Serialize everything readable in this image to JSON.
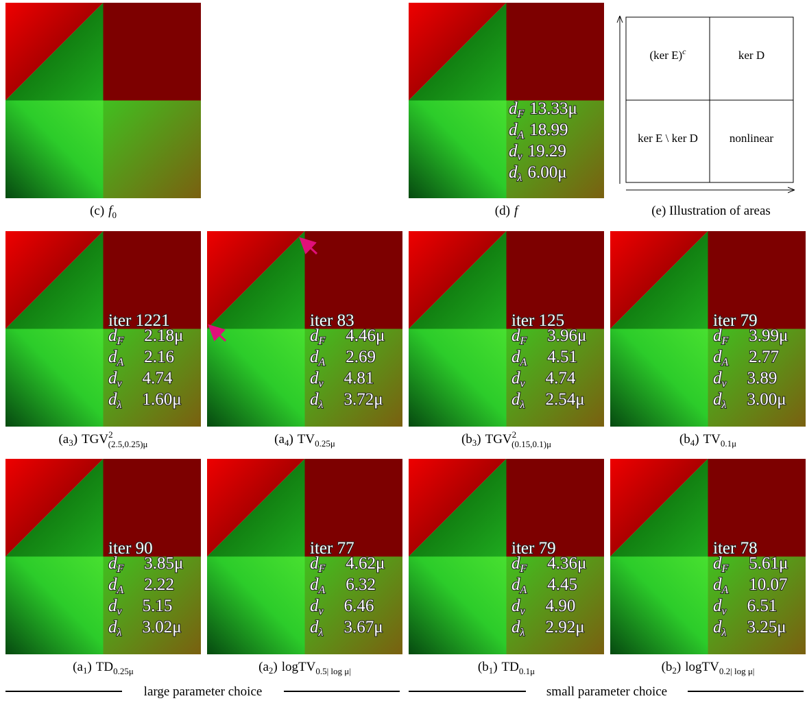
{
  "panels": [
    {
      "caption": {
        "tag": "(c)",
        "name": "f",
        "sub": "0"
      }
    },
    {
      "caption": {
        "tag": "(d)",
        "name": "f"
      },
      "metrics": [
        {
          "sym": "d",
          "sub": "F",
          "value": "13.33μ"
        },
        {
          "sym": "d",
          "sub": "A",
          "value": "18.99"
        },
        {
          "sym": "d",
          "sub": "v",
          "value": "19.29"
        },
        {
          "sym": "d",
          "sub": "λ",
          "value": "6.00μ"
        }
      ]
    },
    {
      "caption": {
        "tag": "(a",
        "tag_sub": "3",
        "tag_end": ")",
        "name": "TGV",
        "sup": "2",
        "sub": "(2.5,0.25)μ"
      },
      "iter": "iter 1221",
      "metrics": [
        {
          "sym": "d",
          "sub": "F",
          "value": "2.18μ"
        },
        {
          "sym": "d",
          "sub": "A",
          "value": "2.16"
        },
        {
          "sym": "d",
          "sub": "v",
          "value": "4.74"
        },
        {
          "sym": "d",
          "sub": "λ",
          "value": "1.60μ"
        }
      ]
    },
    {
      "caption": {
        "tag": "(a",
        "tag_sub": "4",
        "tag_end": ")",
        "name": "TV",
        "sub": "0.25μ"
      },
      "iter": "iter 83",
      "metrics": [
        {
          "sym": "d",
          "sub": "F",
          "value": "4.46μ"
        },
        {
          "sym": "d",
          "sub": "A",
          "value": "2.69"
        },
        {
          "sym": "d",
          "sub": "v",
          "value": "4.81"
        },
        {
          "sym": "d",
          "sub": "λ",
          "value": "3.72μ"
        }
      ]
    },
    {
      "caption": {
        "tag": "(b",
        "tag_sub": "3",
        "tag_end": ")",
        "name": "TGV",
        "sup": "2",
        "sub": "(0.15,0.1)μ"
      },
      "iter": "iter 125",
      "metrics": [
        {
          "sym": "d",
          "sub": "F",
          "value": "3.96μ"
        },
        {
          "sym": "d",
          "sub": "A",
          "value": "4.51"
        },
        {
          "sym": "d",
          "sub": "v",
          "value": "4.74"
        },
        {
          "sym": "d",
          "sub": "λ",
          "value": "2.54μ"
        }
      ]
    },
    {
      "caption": {
        "tag": "(b",
        "tag_sub": "4",
        "tag_end": ")",
        "name": "TV",
        "sub": "0.1μ"
      },
      "iter": "iter 79",
      "metrics": [
        {
          "sym": "d",
          "sub": "F",
          "value": "3.99μ"
        },
        {
          "sym": "d",
          "sub": "A",
          "value": "2.77"
        },
        {
          "sym": "d",
          "sub": "v",
          "value": "3.89"
        },
        {
          "sym": "d",
          "sub": "λ",
          "value": "3.00μ"
        }
      ]
    },
    {
      "caption": {
        "tag": "(a",
        "tag_sub": "1",
        "tag_end": ")",
        "name": "TD",
        "sub": "0.25μ"
      },
      "iter": "iter 90",
      "metrics": [
        {
          "sym": "d",
          "sub": "F",
          "value": "3.85μ"
        },
        {
          "sym": "d",
          "sub": "A",
          "value": "2.22"
        },
        {
          "sym": "d",
          "sub": "v",
          "value": "5.15"
        },
        {
          "sym": "d",
          "sub": "λ",
          "value": "3.02μ"
        }
      ]
    },
    {
      "caption": {
        "tag": "(a",
        "tag_sub": "2",
        "tag_end": ")",
        "name": "logTV",
        "sub": "0.5| log μ|"
      },
      "iter": "iter 77",
      "metrics": [
        {
          "sym": "d",
          "sub": "F",
          "value": "4.62μ"
        },
        {
          "sym": "d",
          "sub": "A",
          "value": "6.32"
        },
        {
          "sym": "d",
          "sub": "v",
          "value": "6.46"
        },
        {
          "sym": "d",
          "sub": "λ",
          "value": "3.67μ"
        }
      ]
    },
    {
      "caption": {
        "tag": "(b",
        "tag_sub": "1",
        "tag_end": ")",
        "name": "TD",
        "sub": "0.1μ"
      },
      "iter": "iter 79",
      "metrics": [
        {
          "sym": "d",
          "sub": "F",
          "value": "4.36μ"
        },
        {
          "sym": "d",
          "sub": "A",
          "value": "4.45"
        },
        {
          "sym": "d",
          "sub": "v",
          "value": "4.90"
        },
        {
          "sym": "d",
          "sub": "λ",
          "value": "2.92μ"
        }
      ]
    },
    {
      "caption": {
        "tag": "(b",
        "tag_sub": "2",
        "tag_end": ")",
        "name": "logTV",
        "sub": "0.2| log μ|"
      },
      "iter": "iter 78",
      "metrics": [
        {
          "sym": "d",
          "sub": "F",
          "value": "5.61μ"
        },
        {
          "sym": "d",
          "sub": "A",
          "value": "10.07"
        },
        {
          "sym": "d",
          "sub": "v",
          "value": "6.51"
        },
        {
          "sym": "d",
          "sub": "λ",
          "value": "3.25μ"
        }
      ]
    }
  ],
  "areas": {
    "caption": "(e) Illustration of areas",
    "cells": [
      {
        "text": "(ker E)",
        "sup": "c"
      },
      {
        "text": "ker D"
      },
      {
        "text": "ker E \\ ker D"
      },
      {
        "text": "nonlinear"
      }
    ]
  },
  "groups": [
    "large parameter choice",
    "small parameter choice"
  ]
}
